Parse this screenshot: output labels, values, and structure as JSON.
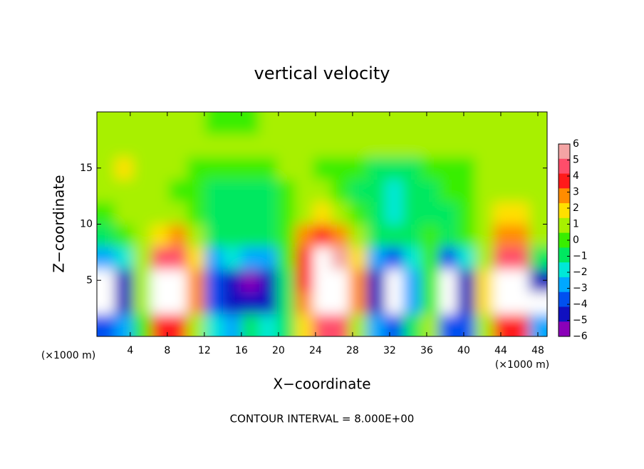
{
  "chart_data": {
    "type": "contour",
    "title": "vertical velocity",
    "x_label": "X−coordinate",
    "y_label": "Z−coordinate",
    "x_unit_left": "(×1000 m)",
    "x_unit_right": "(×1000 m)",
    "footnote": "CONTOUR INTERVAL = 8.000E+00",
    "xlim": [
      0.4,
      49.0
    ],
    "ylim": [
      0,
      20
    ],
    "xticks": [
      4,
      8,
      12,
      16,
      20,
      24,
      28,
      32,
      36,
      40,
      44,
      48
    ],
    "yticks": [
      5,
      10,
      15
    ],
    "colorbar_ticks": [
      6,
      5,
      4,
      3,
      2,
      1,
      0,
      {
        "value": -1,
        "label": "−1"
      },
      {
        "value": -2,
        "label": "−2"
      },
      {
        "value": -3,
        "label": "−3"
      },
      {
        "value": -4,
        "label": "−4"
      },
      {
        "value": -5,
        "label": "−5"
      },
      {
        "value": -6,
        "label": "−6"
      }
    ],
    "colorbar_colors": [
      "#f4a4a4",
      "#ff4d6a",
      "#ff1a1a",
      "#ff8c00",
      "#ffe000",
      "#a8f000",
      "#38ee00",
      "#00e860",
      "#00e8d8",
      "#00a8ff",
      "#0050f0",
      "#1010c0",
      "#8a00b8"
    ],
    "z": [
      [
        -4,
        -3,
        0,
        4,
        4,
        1,
        -2,
        -3,
        -1,
        -2,
        -1,
        2,
        5,
        5,
        1,
        -3,
        -4,
        -1,
        1,
        -4,
        -4,
        1,
        4,
        4,
        -3
      ],
      [
        -8,
        -5,
        1,
        8,
        8,
        3,
        -4,
        -5,
        -5,
        -5,
        -1,
        3,
        8,
        8,
        3,
        -5,
        -8,
        -3,
        0,
        -8,
        -5,
        2,
        8,
        8,
        -7
      ],
      [
        -8,
        -5,
        1,
        8,
        8,
        3,
        -4,
        -5,
        -6,
        -5,
        -1,
        4,
        8,
        8,
        3,
        -5,
        -8,
        -3,
        0,
        -8,
        -5,
        2,
        8,
        8,
        -5
      ],
      [
        -3,
        -2,
        1,
        5,
        5,
        2,
        -3,
        -2,
        -3,
        -3,
        0,
        4,
        8,
        6,
        2,
        -3,
        -4,
        -2,
        0,
        -4,
        -2,
        1,
        5,
        5,
        -1
      ],
      [
        -1,
        0,
        1,
        2,
        3,
        1,
        -1,
        -1,
        -1,
        -1,
        0,
        3,
        4,
        3,
        1,
        -1,
        -1,
        -1,
        0,
        -1,
        0,
        1,
        3,
        3,
        1
      ],
      [
        0,
        1,
        1,
        1,
        1,
        0,
        -1,
        -1,
        -1,
        -1,
        0,
        1,
        2,
        1,
        0,
        -1,
        -2,
        -1,
        -1,
        -1,
        0,
        1,
        2,
        2,
        1
      ],
      [
        1,
        1,
        1,
        1,
        0,
        0,
        -1,
        -1,
        -1,
        -1,
        0,
        1,
        1,
        0,
        -1,
        -1,
        -2,
        -1,
        -1,
        0,
        0,
        1,
        1,
        1,
        1
      ],
      [
        1,
        2,
        1,
        1,
        1,
        0,
        0,
        0,
        0,
        0,
        1,
        1,
        0,
        0,
        0,
        -1,
        -1,
        -1,
        0,
        0,
        0,
        1,
        1,
        1,
        1
      ],
      [
        1,
        1,
        1,
        1,
        1,
        1,
        1,
        1,
        1,
        1,
        1,
        1,
        1,
        1,
        1,
        1,
        1,
        1,
        1,
        1,
        1,
        1,
        1,
        1,
        1
      ],
      [
        1,
        1,
        1,
        1,
        1,
        1,
        0,
        0,
        0,
        1,
        1,
        1,
        1,
        1,
        1,
        1,
        1,
        1,
        1,
        1,
        1,
        1,
        1,
        1,
        1
      ]
    ]
  }
}
